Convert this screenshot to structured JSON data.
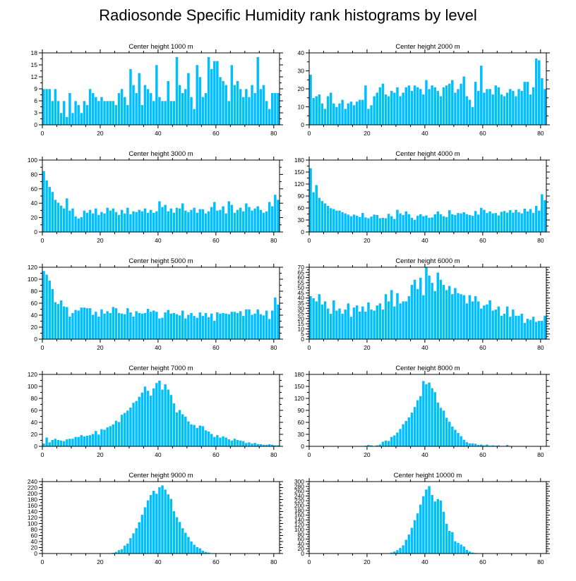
{
  "title": "Radiosonde Specific Humidity rank histograms by level",
  "colors": {
    "bar": "#00bfff",
    "bar_edge": "#ffffff",
    "axis": "#000000",
    "background": "#ffffff"
  },
  "chart_data": [
    {
      "type": "bar",
      "title": "Center height 1000 m",
      "x_start": 0,
      "xlim": [
        0,
        82
      ],
      "xticks": [
        0,
        20,
        40,
        60,
        80
      ],
      "ylim": [
        0,
        18
      ],
      "yticks": [
        0,
        3,
        6,
        9,
        12,
        15,
        18
      ],
      "values": [
        9,
        9,
        9,
        6,
        9,
        6,
        3,
        6,
        2,
        8,
        3,
        6,
        5,
        3,
        6,
        5,
        9,
        8,
        7,
        6,
        7,
        6,
        6,
        6,
        6,
        5,
        8,
        9,
        7,
        5,
        14,
        10,
        8,
        13,
        5,
        10,
        9,
        8,
        6,
        15,
        7,
        6,
        6,
        11,
        6,
        6,
        17,
        10,
        8,
        9,
        13,
        7,
        4,
        15,
        12,
        7,
        8,
        17,
        14,
        16,
        16,
        12,
        11,
        10,
        6,
        15,
        10,
        11,
        9,
        7,
        9,
        7,
        10,
        8,
        17,
        9,
        10,
        6,
        4,
        8,
        8,
        8
      ]
    },
    {
      "type": "bar",
      "title": "Center height 2000 m",
      "x_start": 0,
      "xlim": [
        0,
        82
      ],
      "xticks": [
        0,
        20,
        40,
        60,
        80
      ],
      "ylim": [
        0,
        40
      ],
      "yticks": [
        0,
        10,
        20,
        30,
        40
      ],
      "values": [
        28,
        15,
        16,
        17,
        12,
        9,
        16,
        18,
        12,
        10,
        12,
        14,
        9,
        12,
        13,
        11,
        13,
        14,
        14,
        22,
        9,
        11,
        16,
        18,
        21,
        23,
        17,
        16,
        19,
        18,
        21,
        16,
        18,
        21,
        22,
        19,
        22,
        21,
        20,
        17,
        25,
        20,
        22,
        21,
        19,
        16,
        21,
        22,
        23,
        25,
        18,
        20,
        23,
        27,
        16,
        14,
        10,
        24,
        19,
        33,
        18,
        20,
        20,
        17,
        22,
        21,
        17,
        16,
        18,
        20,
        19,
        16,
        20,
        19,
        24,
        24,
        17,
        21,
        37,
        36,
        26,
        20
      ]
    },
    {
      "type": "bar",
      "title": "Center height 3000 m",
      "x_start": 0,
      "xlim": [
        0,
        82
      ],
      "xticks": [
        0,
        20,
        40,
        60,
        80
      ],
      "ylim": [
        0,
        100
      ],
      "yticks": [
        0,
        20,
        40,
        60,
        80,
        100
      ],
      "values": [
        85,
        72,
        63,
        56,
        45,
        41,
        37,
        33,
        47,
        30,
        33,
        22,
        19,
        21,
        30,
        27,
        31,
        26,
        33,
        24,
        28,
        26,
        34,
        30,
        33,
        28,
        24,
        31,
        26,
        34,
        25,
        29,
        28,
        31,
        29,
        33,
        27,
        31,
        27,
        29,
        43,
        35,
        38,
        29,
        33,
        27,
        34,
        33,
        40,
        30,
        28,
        31,
        34,
        27,
        32,
        32,
        26,
        29,
        35,
        42,
        30,
        31,
        36,
        26,
        43,
        38,
        27,
        31,
        34,
        29,
        40,
        35,
        30,
        33,
        36,
        31,
        27,
        29,
        42,
        36,
        52,
        45
      ]
    },
    {
      "type": "bar",
      "title": "Center height 4000 m",
      "x_start": 0,
      "xlim": [
        0,
        82
      ],
      "xticks": [
        0,
        20,
        40,
        60,
        80
      ],
      "ylim": [
        0,
        180
      ],
      "yticks": [
        0,
        30,
        60,
        90,
        120,
        150,
        180
      ],
      "values": [
        160,
        100,
        118,
        86,
        78,
        72,
        66,
        60,
        58,
        54,
        54,
        50,
        47,
        44,
        40,
        44,
        41,
        38,
        48,
        37,
        35,
        39,
        44,
        43,
        35,
        36,
        35,
        46,
        40,
        33,
        56,
        47,
        43,
        52,
        45,
        36,
        31,
        41,
        45,
        40,
        42,
        36,
        37,
        45,
        52,
        45,
        40,
        38,
        55,
        45,
        43,
        48,
        47,
        50,
        45,
        43,
        41,
        53,
        44,
        61,
        56,
        48,
        52,
        47,
        48,
        42,
        51,
        53,
        49,
        55,
        49,
        56,
        50,
        47,
        59,
        52,
        58,
        48,
        66,
        54,
        95,
        80
      ]
    },
    {
      "type": "bar",
      "title": "Center height 5000 m",
      "x_start": 0,
      "xlim": [
        0,
        82
      ],
      "xticks": [
        0,
        20,
        40,
        60,
        80
      ],
      "ylim": [
        0,
        120
      ],
      "yticks": [
        0,
        20,
        40,
        60,
        80,
        100,
        120
      ],
      "values": [
        114,
        108,
        98,
        84,
        62,
        59,
        65,
        55,
        54,
        38,
        44,
        49,
        48,
        53,
        53,
        52,
        52,
        41,
        46,
        38,
        50,
        43,
        47,
        44,
        54,
        52,
        44,
        43,
        42,
        52,
        45,
        38,
        47,
        44,
        43,
        44,
        51,
        46,
        48,
        46,
        35,
        36,
        45,
        49,
        43,
        44,
        42,
        40,
        48,
        35,
        41,
        44,
        39,
        36,
        45,
        39,
        44,
        37,
        43,
        31,
        45,
        43,
        44,
        43,
        42,
        46,
        46,
        44,
        47,
        39,
        50,
        50,
        41,
        43,
        50,
        42,
        40,
        48,
        34,
        48,
        70,
        58
      ]
    },
    {
      "type": "bar",
      "title": "Center height 6000 m",
      "x_start": 0,
      "xlim": [
        0,
        82
      ],
      "xticks": [
        0,
        20,
        40,
        60,
        80
      ],
      "ylim": [
        0,
        70
      ],
      "yticks": [
        0,
        5,
        10,
        15,
        20,
        25,
        30,
        35,
        40,
        45,
        50,
        55,
        60,
        65,
        70
      ],
      "values": [
        42,
        40,
        37,
        44,
        34,
        37,
        30,
        25,
        38,
        28,
        30,
        25,
        29,
        35,
        22,
        31,
        33,
        27,
        32,
        27,
        36,
        29,
        28,
        33,
        35,
        29,
        44,
        37,
        48,
        32,
        45,
        35,
        37,
        37,
        42,
        53,
        58,
        49,
        60,
        43,
        70,
        62,
        55,
        47,
        65,
        58,
        53,
        48,
        52,
        44,
        50,
        45,
        44,
        43,
        35,
        43,
        37,
        42,
        37,
        30,
        33,
        34,
        38,
        28,
        29,
        32,
        23,
        25,
        32,
        22,
        29,
        23,
        23,
        25,
        16,
        20,
        19,
        22,
        17,
        18,
        18,
        23
      ]
    },
    {
      "type": "bar",
      "title": "Center height 7000 m",
      "x_start": 0,
      "xlim": [
        0,
        82
      ],
      "xticks": [
        0,
        20,
        40,
        60,
        80
      ],
      "ylim": [
        0,
        120
      ],
      "yticks": [
        0,
        20,
        40,
        60,
        80,
        100,
        120
      ],
      "values": [
        5,
        15,
        7,
        11,
        13,
        11,
        10,
        9,
        12,
        13,
        13,
        16,
        16,
        19,
        17,
        18,
        19,
        21,
        26,
        20,
        29,
        28,
        32,
        34,
        37,
        43,
        41,
        53,
        56,
        60,
        65,
        73,
        76,
        83,
        90,
        100,
        93,
        85,
        97,
        106,
        110,
        95,
        104,
        95,
        86,
        72,
        57,
        61,
        54,
        50,
        42,
        37,
        36,
        31,
        35,
        34,
        27,
        25,
        21,
        16,
        19,
        15,
        17,
        15,
        12,
        10,
        13,
        11,
        10,
        9,
        6,
        7,
        5,
        6,
        4,
        4,
        3,
        3,
        4,
        3,
        2,
        2
      ]
    },
    {
      "type": "bar",
      "title": "Center height 8000 m",
      "x_start": 0,
      "xlim": [
        0,
        82
      ],
      "xticks": [
        0,
        20,
        40,
        60,
        80
      ],
      "ylim": [
        0,
        180
      ],
      "yticks": [
        0,
        30,
        60,
        90,
        120,
        150,
        180
      ],
      "values": [
        0,
        0,
        0,
        0,
        0,
        0,
        0,
        0,
        0,
        0,
        0,
        0,
        0,
        0,
        0,
        0,
        0,
        0,
        1,
        2,
        4,
        3,
        1,
        3,
        5,
        12,
        15,
        14,
        24,
        28,
        35,
        44,
        56,
        64,
        73,
        85,
        99,
        116,
        126,
        164,
        156,
        160,
        146,
        136,
        110,
        97,
        90,
        72,
        62,
        50,
        42,
        34,
        26,
        17,
        11,
        8,
        8,
        7,
        4,
        5,
        3,
        5,
        2,
        3,
        2,
        3,
        1,
        0,
        4,
        1,
        0,
        0,
        0,
        0,
        0,
        0,
        0,
        0,
        0,
        0,
        0,
        0
      ]
    },
    {
      "type": "bar",
      "title": "Center height 9000 m",
      "x_start": 0,
      "xlim": [
        0,
        82
      ],
      "xticks": [
        0,
        20,
        40,
        60,
        80
      ],
      "ylim": [
        0,
        240
      ],
      "yticks": [
        0,
        20,
        40,
        60,
        80,
        100,
        120,
        140,
        160,
        180,
        200,
        220,
        240
      ],
      "values": [
        0,
        0,
        0,
        0,
        0,
        0,
        0,
        0,
        0,
        0,
        0,
        0,
        0,
        0,
        0,
        0,
        0,
        0,
        0,
        0,
        0,
        0,
        1,
        2,
        3,
        6,
        12,
        15,
        27,
        34,
        52,
        68,
        85,
        105,
        130,
        155,
        178,
        196,
        210,
        200,
        222,
        228,
        214,
        198,
        183,
        142,
        122,
        106,
        85,
        70,
        56,
        41,
        30,
        22,
        18,
        10,
        6,
        4,
        2,
        1,
        1,
        0,
        0,
        0,
        0,
        0,
        0,
        0,
        0,
        0,
        0,
        0,
        0,
        0,
        0,
        0,
        0,
        0,
        0,
        0,
        0,
        0
      ]
    },
    {
      "type": "bar",
      "title": "Center height 10000 m",
      "x_start": 0,
      "xlim": [
        0,
        82
      ],
      "xticks": [
        0,
        20,
        40,
        60,
        80
      ],
      "ylim": [
        0,
        300
      ],
      "yticks": [
        0,
        20,
        40,
        60,
        80,
        100,
        120,
        140,
        160,
        180,
        200,
        220,
        240,
        260,
        280,
        300
      ],
      "values": [
        0,
        0,
        0,
        0,
        0,
        0,
        0,
        0,
        0,
        0,
        0,
        0,
        0,
        0,
        0,
        0,
        0,
        0,
        0,
        0,
        0,
        0,
        0,
        0,
        0,
        0,
        1,
        2,
        5,
        9,
        15,
        24,
        35,
        58,
        80,
        108,
        140,
        168,
        205,
        240,
        268,
        282,
        245,
        218,
        228,
        222,
        175,
        125,
        95,
        90,
        52,
        45,
        38,
        30,
        16,
        9,
        5,
        3,
        2,
        1,
        1,
        0,
        0,
        0,
        0,
        0,
        0,
        0,
        0,
        0,
        0,
        0,
        0,
        0,
        0,
        0,
        0,
        0,
        0,
        0,
        0,
        0
      ]
    }
  ]
}
